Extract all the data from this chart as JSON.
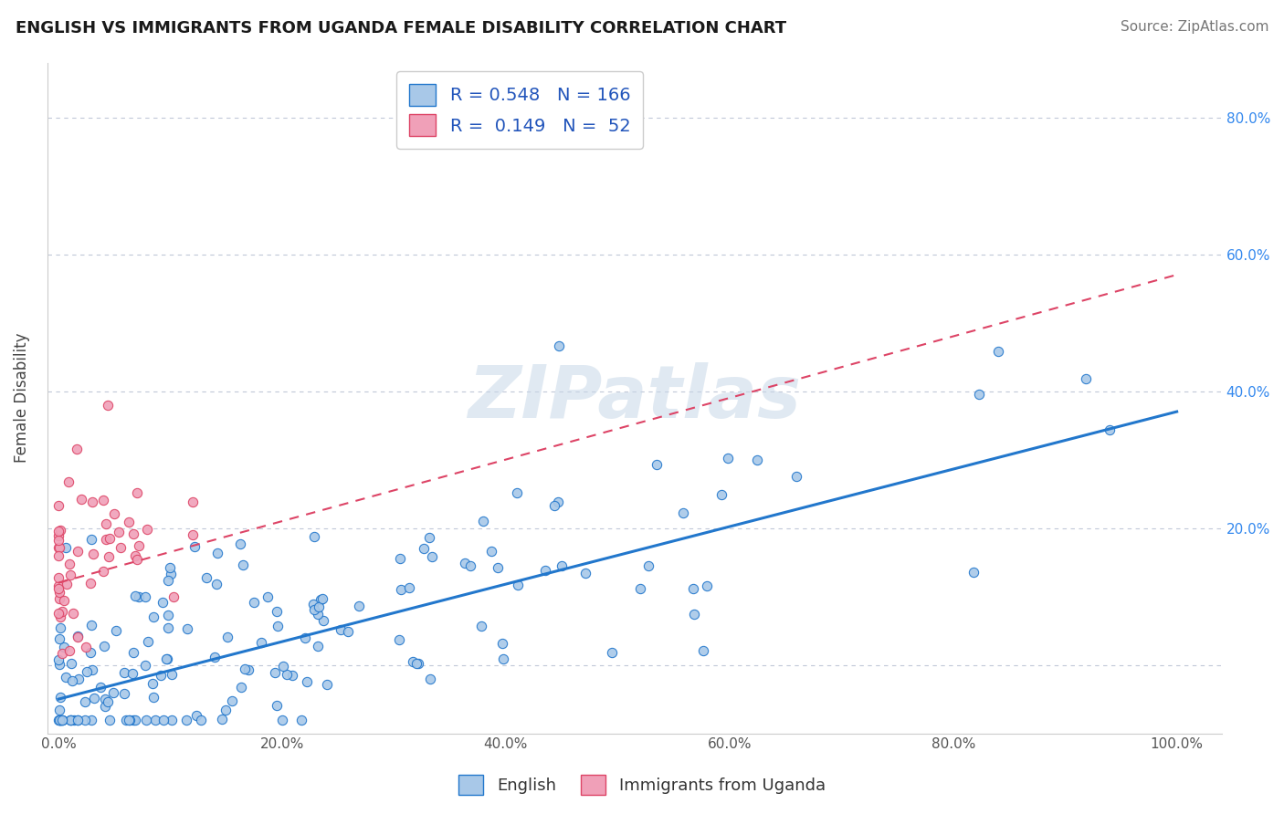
{
  "title": "ENGLISH VS IMMIGRANTS FROM UGANDA FEMALE DISABILITY CORRELATION CHART",
  "source": "Source: ZipAtlas.com",
  "ylabel": "Female Disability",
  "legend_bottom": [
    "English",
    "Immigrants from Uganda"
  ],
  "english_R": 0.548,
  "english_N": 166,
  "uganda_R": 0.149,
  "uganda_N": 52,
  "english_color": "#a8c8e8",
  "uganda_color": "#f0a0b8",
  "english_line_color": "#2277cc",
  "uganda_line_color": "#dd4466",
  "background_color": "#ffffff",
  "grid_color": "#c0c8d8",
  "watermark": "ZIPatlas",
  "title_fontsize": 13,
  "tick_fontsize": 11,
  "legend_fontsize": 13,
  "source_fontsize": 11,
  "eng_intercept": -0.05,
  "eng_slope": 0.42,
  "uga_intercept": 0.12,
  "uga_slope": 0.45
}
